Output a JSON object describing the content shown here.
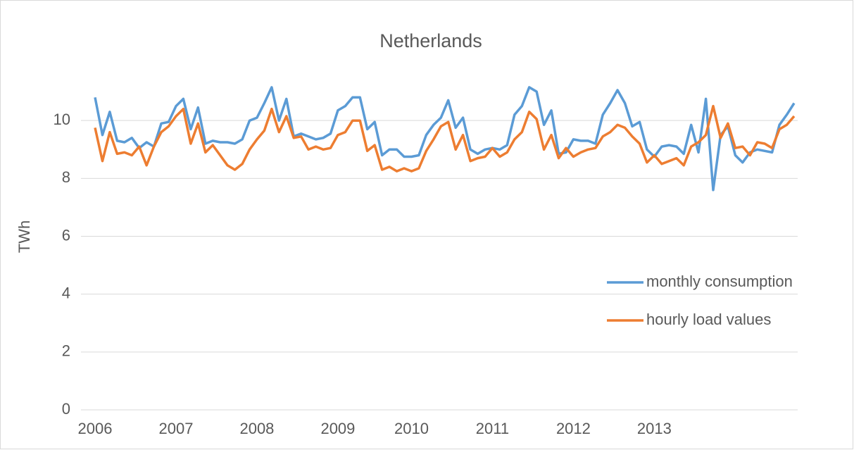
{
  "chart_data": {
    "type": "line",
    "title": "Netherlands",
    "y_label": "TWh",
    "categories": [
      "2006",
      null,
      null,
      null,
      null,
      null,
      null,
      null,
      null,
      null,
      null,
      "2007",
      null,
      null,
      null,
      null,
      null,
      null,
      null,
      null,
      null,
      null,
      "2008",
      null,
      null,
      null,
      null,
      null,
      null,
      null,
      null,
      null,
      null,
      "2009",
      null,
      null,
      null,
      null,
      null,
      null,
      null,
      null,
      null,
      "2010",
      null,
      null,
      null,
      null,
      null,
      null,
      null,
      null,
      null,
      null,
      "2011",
      null,
      null,
      null,
      null,
      null,
      null,
      null,
      null,
      null,
      null,
      "2012",
      null,
      null,
      null,
      null,
      null,
      null,
      null,
      null,
      null,
      null,
      "2013",
      null,
      null,
      null,
      null,
      null,
      null,
      null,
      null,
      null,
      null,
      null,
      null,
      null,
      null,
      null,
      null,
      null,
      null,
      null
    ],
    "series": [
      {
        "name": "monthly consumption",
        "color": "#5b9bd5",
        "values": [
          10.8,
          9.5,
          10.3,
          9.3,
          9.25,
          9.4,
          9.05,
          9.25,
          9.1,
          9.9,
          9.95,
          10.5,
          10.75,
          9.7,
          10.45,
          9.2,
          9.3,
          9.25,
          9.25,
          9.2,
          9.35,
          10.0,
          10.1,
          10.6,
          11.15,
          10.0,
          10.75,
          9.45,
          9.55,
          9.45,
          9.35,
          9.4,
          9.55,
          10.35,
          10.5,
          10.8,
          10.8,
          9.7,
          9.95,
          8.8,
          9.0,
          9.0,
          8.75,
          8.75,
          8.8,
          9.5,
          9.85,
          10.1,
          10.7,
          9.75,
          10.1,
          9.0,
          8.85,
          9.0,
          9.05,
          9.0,
          9.15,
          10.2,
          10.5,
          11.15,
          11.0,
          9.85,
          10.35,
          8.85,
          8.9,
          9.35,
          9.3,
          9.3,
          9.2,
          10.2,
          10.6,
          11.05,
          10.6,
          9.8,
          9.95,
          9.0,
          8.75,
          9.1,
          9.15,
          9.1,
          8.85,
          9.85,
          8.9,
          10.75,
          7.6,
          9.5,
          9.8,
          8.8,
          8.55,
          8.9,
          9.0,
          8.95,
          8.9,
          9.85,
          10.2,
          10.6
        ]
      },
      {
        "name": "hourly load values",
        "color": "#ed7d31",
        "values": [
          9.75,
          8.6,
          9.6,
          8.85,
          8.9,
          8.8,
          9.1,
          8.45,
          9.1,
          9.6,
          9.8,
          10.15,
          10.4,
          9.2,
          9.9,
          8.9,
          9.15,
          8.8,
          8.45,
          8.3,
          8.5,
          9.0,
          9.35,
          9.65,
          10.4,
          9.6,
          10.15,
          9.4,
          9.45,
          9.0,
          9.1,
          9.0,
          9.05,
          9.5,
          9.6,
          10.0,
          10.0,
          8.95,
          9.15,
          8.3,
          8.4,
          8.25,
          8.35,
          8.25,
          8.35,
          8.95,
          9.35,
          9.8,
          9.95,
          9.0,
          9.5,
          8.6,
          8.7,
          8.75,
          9.05,
          8.75,
          8.9,
          9.35,
          9.6,
          10.3,
          10.05,
          9.0,
          9.5,
          8.7,
          9.05,
          8.75,
          8.9,
          9.0,
          9.05,
          9.45,
          9.6,
          9.85,
          9.75,
          9.45,
          9.2,
          8.55,
          8.8,
          8.5,
          8.6,
          8.7,
          8.45,
          9.1,
          9.25,
          9.5,
          10.5,
          9.4,
          9.9,
          9.05,
          9.1,
          8.8,
          9.25,
          9.2,
          9.05,
          9.7,
          9.85,
          10.15
        ]
      }
    ],
    "ylim": [
      0,
      12
    ],
    "yticks": [
      0,
      2,
      4,
      6,
      8,
      10
    ],
    "grid": true,
    "legend": "right"
  }
}
